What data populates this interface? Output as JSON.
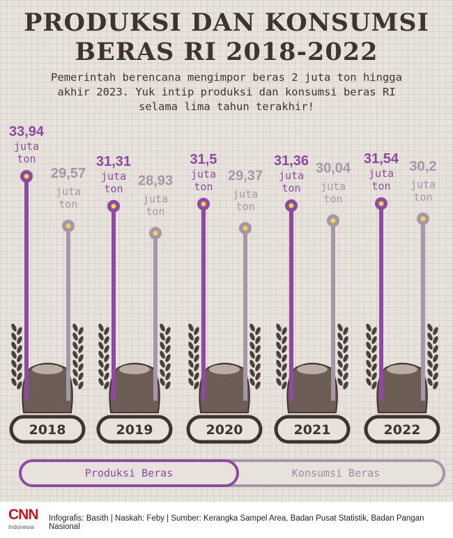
{
  "title_line1": "PRODUKSI DAN KONSUMSI",
  "title_line2": "BERAS RI 2018-2022",
  "subtitle_lines": [
    "Pemerintah berencana mengimpor beras 2 juta ton hingga",
    "akhir 2023. Yuk intip produksi dan konsumsi beras RI",
    "selama lima tahun terakhir!"
  ],
  "colors": {
    "produksi": "#8d4aa0",
    "konsumsi": "#a597a8",
    "dot": "#ead84a",
    "dark": "#3f342d"
  },
  "chart_data": {
    "type": "bar",
    "categories": [
      "2018",
      "2019",
      "2020",
      "2021",
      "2022"
    ],
    "series": [
      {
        "name": "Produksi Beras",
        "values": [
          33.94,
          31.31,
          31.5,
          31.36,
          31.54
        ],
        "labels": [
          "33,94",
          "31,31",
          "31,5",
          "31,36",
          "31,54"
        ]
      },
      {
        "name": "Konsumsi Beras",
        "values": [
          29.57,
          28.93,
          29.37,
          30.04,
          30.2
        ],
        "labels": [
          "29,57",
          "28,93",
          "29,37",
          "30,04",
          "30,2"
        ]
      }
    ],
    "unit_line1": "juta",
    "unit_line2": "ton"
  },
  "legend": {
    "produksi": "Produksi Beras",
    "konsumsi": "Konsumsi Beras"
  },
  "footer": {
    "logo": "CNN",
    "logo_sub": "Indonesia",
    "credits": "Infografis: Basith | Naskah: Feby | Sumber: Kerangka Sampel Area, Badan Pusat Statistik, Badan Pangan Nasional"
  }
}
